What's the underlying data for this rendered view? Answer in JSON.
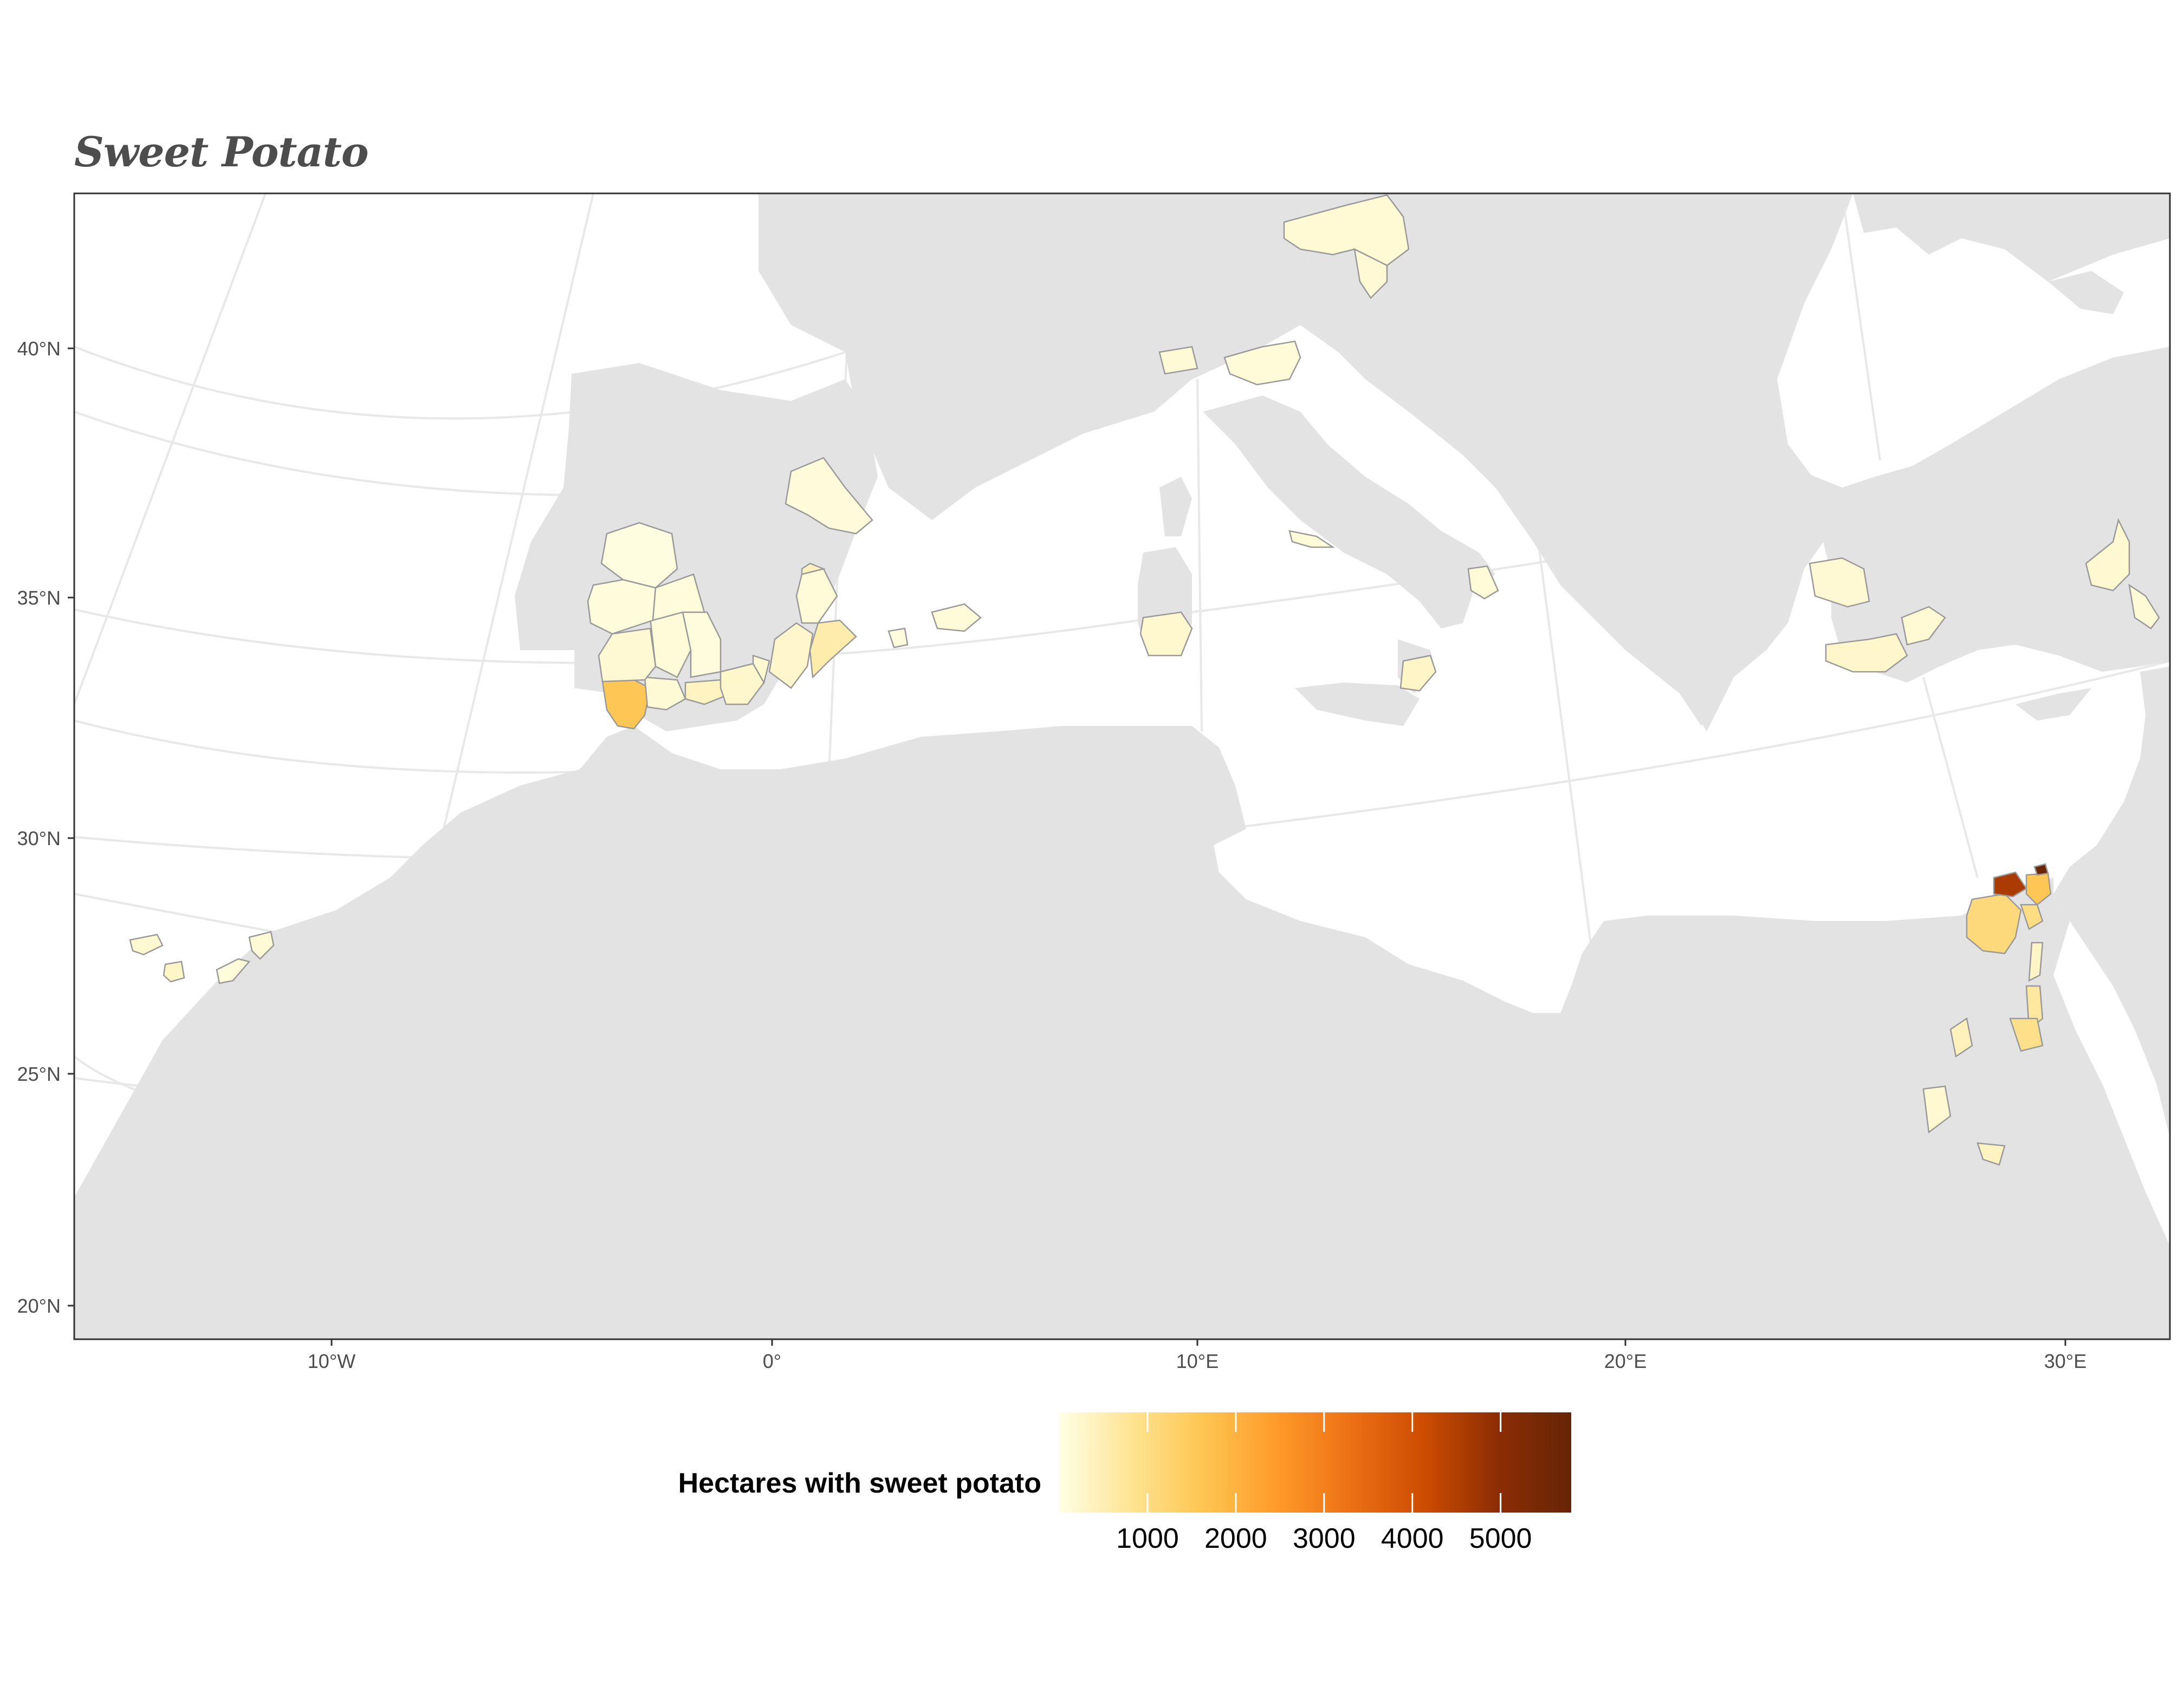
{
  "title": "Sweet Potato",
  "colors": {
    "ocean": "#ffffff",
    "land": "#e3e3e3",
    "graticule": "#ebebeb",
    "frame": "#333333",
    "region_border": "#9a9a9a",
    "scale": [
      "#ffffe5",
      "#fee391",
      "#fec44f",
      "#fe9929",
      "#ec7014",
      "#cc4c02",
      "#8c2d04",
      "#662506"
    ]
  },
  "axes": {
    "y_ticks": [
      "40°N",
      "35°N",
      "30°N",
      "25°N",
      "20°N"
    ],
    "x_ticks": [
      "10°W",
      "0°",
      "10°E",
      "20°E",
      "30°E"
    ]
  },
  "legend": {
    "title": "Hectares with sweet potato",
    "range": [
      0,
      5800
    ],
    "breaks": [
      1000,
      2000,
      3000,
      4000,
      5000
    ],
    "break_labels": [
      "1000",
      "2000",
      "3000",
      "4000",
      "5000"
    ]
  },
  "regions": [
    {
      "id": "huelva",
      "value": 1600
    },
    {
      "id": "cadiz",
      "value": 150
    },
    {
      "id": "malaga",
      "value": 350
    },
    {
      "id": "granada",
      "value": 250
    },
    {
      "id": "almeria",
      "value": 200
    },
    {
      "id": "sevilla",
      "value": 180
    },
    {
      "id": "cordoba",
      "value": 120
    },
    {
      "id": "jaen",
      "value": 80
    },
    {
      "id": "badajoz",
      "value": 100
    },
    {
      "id": "caceres",
      "value": 60
    },
    {
      "id": "ciudad-real",
      "value": 90
    },
    {
      "id": "albacete",
      "value": 140
    },
    {
      "id": "murcia",
      "value": 260
    },
    {
      "id": "alicante",
      "value": 550
    },
    {
      "id": "valencia",
      "value": 400
    },
    {
      "id": "zaragoza",
      "value": 110
    },
    {
      "id": "balearic-majorca",
      "value": 120
    },
    {
      "id": "balearic-ibiza",
      "value": 80
    },
    {
      "id": "sardinia",
      "value": 220
    },
    {
      "id": "liguria",
      "value": 150
    },
    {
      "id": "veneto",
      "value": 130
    },
    {
      "id": "campania",
      "value": 140
    },
    {
      "id": "apulia",
      "value": 120
    },
    {
      "id": "calabria",
      "value": 300
    },
    {
      "id": "slovenia-croatia",
      "value": 170
    },
    {
      "id": "hungary-region",
      "value": 160
    },
    {
      "id": "canary-gran-canaria",
      "value": 300
    },
    {
      "id": "canary-tenerife",
      "value": 200
    },
    {
      "id": "canary-lanzarote",
      "value": 150
    },
    {
      "id": "canary-fuerteventura",
      "value": 100
    },
    {
      "id": "thrace",
      "value": 180
    },
    {
      "id": "izmir",
      "value": 260
    },
    {
      "id": "aydin",
      "value": 170
    },
    {
      "id": "antalya-region",
      "value": 200
    },
    {
      "id": "hatay",
      "value": 150
    },
    {
      "id": "egypt-beheira",
      "value": 1100
    },
    {
      "id": "egypt-kafr-el-sheikh",
      "value": 4600
    },
    {
      "id": "egypt-dakahlia",
      "value": 1600
    },
    {
      "id": "egypt-damietta",
      "value": 5700
    },
    {
      "id": "egypt-sharqia",
      "value": 1000
    },
    {
      "id": "egypt-giza",
      "value": 300
    },
    {
      "id": "egypt-minya",
      "value": 700
    },
    {
      "id": "egypt-asyut",
      "value": 900
    },
    {
      "id": "egypt-new-valley",
      "value": 400
    },
    {
      "id": "egypt-red-sea",
      "value": 200
    },
    {
      "id": "egypt-aswan",
      "value": 350
    }
  ]
}
